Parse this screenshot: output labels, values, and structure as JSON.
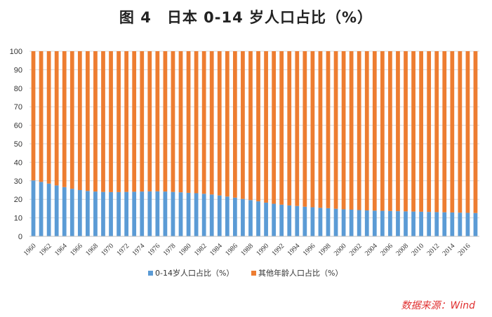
{
  "chart_data": {
    "type": "bar",
    "stacked": true,
    "title": "图 4　日本 0-14 岁人口占比（%）",
    "source": "数据来源：Wind",
    "xlabel": "",
    "ylabel": "",
    "ylim": [
      0,
      100
    ],
    "yticks": [
      0,
      10,
      20,
      30,
      40,
      50,
      60,
      70,
      80,
      90,
      100
    ],
    "legend_position": "bottom",
    "categories": [
      "1960",
      "1961",
      "1962",
      "1963",
      "1964",
      "1965",
      "1966",
      "1967",
      "1968",
      "1969",
      "1970",
      "1971",
      "1972",
      "1973",
      "1974",
      "1975",
      "1976",
      "1977",
      "1978",
      "1979",
      "1980",
      "1981",
      "1982",
      "1983",
      "1984",
      "1985",
      "1986",
      "1987",
      "1988",
      "1989",
      "1990",
      "1991",
      "1992",
      "1993",
      "1994",
      "1995",
      "1996",
      "1997",
      "1998",
      "1999",
      "2000",
      "2001",
      "2002",
      "2003",
      "2004",
      "2005",
      "2006",
      "2007",
      "2008",
      "2009",
      "2010",
      "2011",
      "2012",
      "2013",
      "2014",
      "2015",
      "2016",
      "2017"
    ],
    "x_tick_labels": [
      "1960",
      "1962",
      "1964",
      "1966",
      "1968",
      "1970",
      "1972",
      "1974",
      "1976",
      "1978",
      "1980",
      "1982",
      "1984",
      "1986",
      "1988",
      "1990",
      "1992",
      "1994",
      "1996",
      "1998",
      "2000",
      "2002",
      "2004",
      "2006",
      "2008",
      "2010",
      "2012",
      "2014",
      "2016"
    ],
    "series": [
      {
        "name": "0-14岁人口占比（%）",
        "color": "#5b9bd5",
        "values": [
          30.2,
          29.4,
          28.5,
          27.5,
          26.6,
          25.7,
          25.0,
          24.5,
          24.2,
          24.0,
          23.9,
          23.9,
          24.0,
          24.1,
          24.2,
          24.3,
          24.3,
          24.2,
          24.0,
          23.8,
          23.5,
          23.3,
          23.0,
          22.6,
          22.1,
          21.5,
          20.9,
          20.2,
          19.6,
          18.9,
          18.2,
          17.6,
          17.1,
          16.7,
          16.4,
          16.0,
          15.7,
          15.4,
          15.2,
          14.9,
          14.6,
          14.4,
          14.2,
          14.0,
          13.9,
          13.8,
          13.7,
          13.6,
          13.5,
          13.4,
          13.3,
          13.2,
          13.1,
          13.0,
          12.9,
          12.8,
          12.7,
          12.6
        ]
      },
      {
        "name": "其他年龄人口占比（%）",
        "color": "#ed7d31",
        "values": [
          69.8,
          70.6,
          71.5,
          72.5,
          73.4,
          74.3,
          75.0,
          75.5,
          75.8,
          76.0,
          76.1,
          76.1,
          76.0,
          75.9,
          75.8,
          75.7,
          75.7,
          75.8,
          76.0,
          76.2,
          76.5,
          76.7,
          77.0,
          77.4,
          77.9,
          78.5,
          79.1,
          79.8,
          80.4,
          81.1,
          81.8,
          82.4,
          82.9,
          83.3,
          83.6,
          84.0,
          84.3,
          84.6,
          84.8,
          85.1,
          85.4,
          85.6,
          85.8,
          86.0,
          86.1,
          86.2,
          86.3,
          86.4,
          86.5,
          86.6,
          86.7,
          86.8,
          86.9,
          87.0,
          87.1,
          87.2,
          87.3,
          87.4
        ]
      }
    ]
  }
}
